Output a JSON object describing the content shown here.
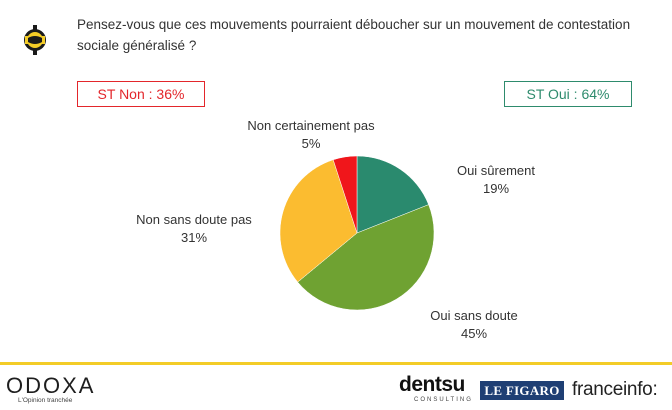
{
  "question": "Pensez-vous que ces mouvements pourraient déboucher sur un mouvement de contestation sociale généralisé ?",
  "summary": {
    "non": "ST Non : 36%",
    "oui": "ST Oui : 64%"
  },
  "colors": {
    "non_accent": "#e3262b",
    "oui_accent": "#2e8b6d",
    "footer_line": "#f3cc27"
  },
  "chart_data": {
    "type": "pie",
    "slices": [
      {
        "name": "Oui sûrement",
        "value": 19,
        "label": "19%",
        "color": "#2a8a6e"
      },
      {
        "name": "Oui sans doute",
        "value": 45,
        "label": "45%",
        "color": "#6fa232"
      },
      {
        "name": "Non sans doute pas",
        "value": 31,
        "label": "31%",
        "color": "#fbbc30"
      },
      {
        "name": "Non certainement pas",
        "value": 5,
        "label": "5%",
        "color": "#f0161b"
      }
    ],
    "start": "12 o'clock",
    "direction": "clockwise"
  },
  "footer": {
    "brand": "ODOXA",
    "tagline": "L'Opinion tranchée",
    "partners": [
      "dentsu",
      "CONSULTING",
      "LE FIGARO",
      "franceinfo:"
    ]
  }
}
